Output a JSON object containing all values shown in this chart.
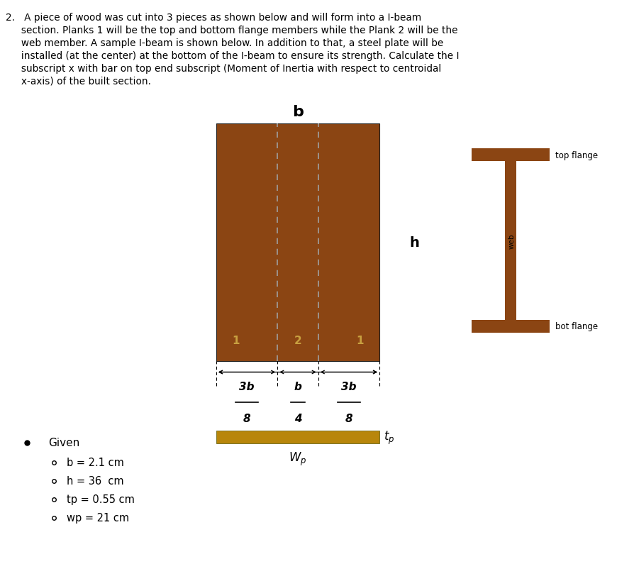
{
  "wood_color": "#8B4513",
  "steel_color": "#B8860B",
  "bg_color": "#ffffff",
  "label_color_on_wood": "#C8A040",
  "dashed_color": "#a0a0a0",
  "arrow_color": "#404040",
  "given_items": [
    "b = 2.1 cm",
    "h = 36  cm",
    "tp = 0.55 cm",
    "wp = 21 cm"
  ],
  "problem_lines": [
    "2.   A piece of wood was cut into 3 pieces as shown below and will form into a I-beam",
    "     section. Planks 1 will be the top and bottom flange members while the Plank 2 will be the",
    "     web member. A sample I-beam is shown below. In addition to that, a steel plate will be",
    "     installed (at the center) at the bottom of the I-beam to ensure its strength. Calculate the I",
    "     subscript x with bar on top end subscript (Moment of Inertia with respect to centroidal",
    "     x-axis) of the built section."
  ]
}
